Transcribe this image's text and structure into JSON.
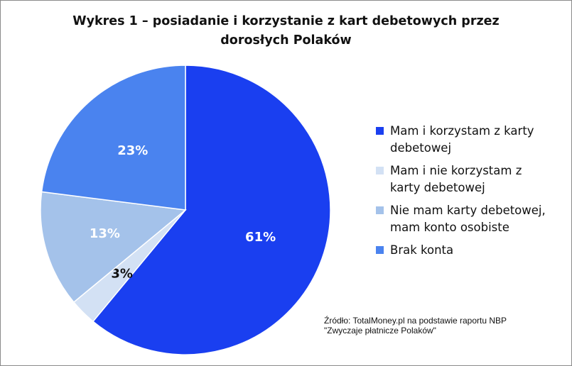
{
  "chart_data": {
    "type": "pie",
    "title_lines": [
      "Wykres 1 – posiadanie i korzystanie z kart debetowych przez",
      "dorosłych Polaków"
    ],
    "slices": [
      {
        "label_lines": [
          "Mam i korzystam z karty",
          "debetowej"
        ],
        "value": 61,
        "value_label": "61%",
        "color": "#1a3ff0",
        "label_color": "#ffffff"
      },
      {
        "label_lines": [
          "Mam i nie korzystam z",
          "karty debetowej"
        ],
        "value": 3,
        "value_label": "3%",
        "color": "#d3e1f4",
        "label_color": "#111111"
      },
      {
        "label_lines": [
          "Nie mam karty debetowej,",
          "mam konto osobiste"
        ],
        "value": 13,
        "value_label": "13%",
        "color": "#a4c2ea",
        "label_color": "#ffffff"
      },
      {
        "label_lines": [
          "Brak konta"
        ],
        "value": 23,
        "value_label": "23%",
        "color": "#4a83ef",
        "label_color": "#ffffff"
      }
    ],
    "legend_position": "right"
  },
  "source": {
    "lines": [
      "Źródło: TotalMoney.pl na podstawie raportu NBP",
      "\"Zwyczaje płatnicze Polaków\""
    ]
  }
}
